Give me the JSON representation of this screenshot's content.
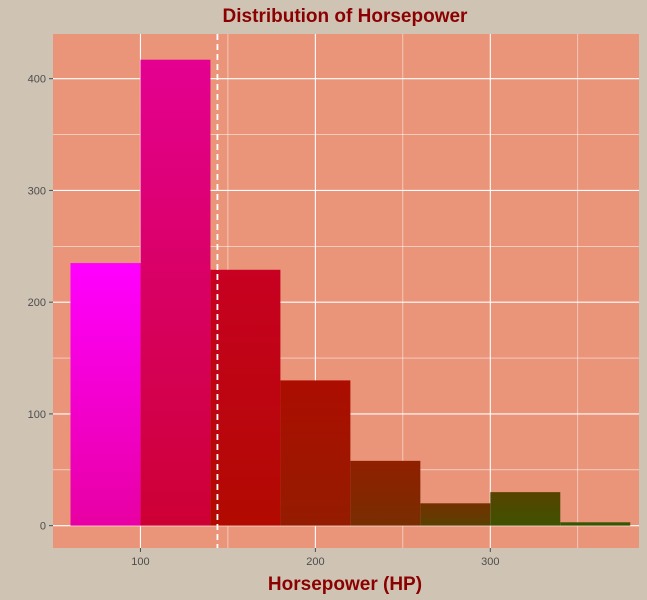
{
  "chart_data": {
    "type": "bar",
    "title": "Distribution of Horsepower",
    "xlabel": "Horsepower (HP)",
    "ylabel": "",
    "xlim": [
      50,
      385
    ],
    "ylim": [
      -20,
      440
    ],
    "x_ticks": [
      100,
      200,
      300
    ],
    "y_ticks": [
      0,
      100,
      200,
      300,
      400
    ],
    "bins": [
      {
        "x0": 60,
        "x1": 100,
        "count": 235
      },
      {
        "x0": 100,
        "x1": 140,
        "count": 417
      },
      {
        "x0": 140,
        "x1": 180,
        "count": 229
      },
      {
        "x0": 180,
        "x1": 220,
        "count": 130
      },
      {
        "x0": 220,
        "x1": 260,
        "count": 58
      },
      {
        "x0": 260,
        "x1": 300,
        "count": 20
      },
      {
        "x0": 300,
        "x1": 340,
        "count": 30
      },
      {
        "x0": 340,
        "x1": 380,
        "count": 3
      }
    ],
    "mean_line": 144,
    "grid": true,
    "legend": "none"
  },
  "colors": {
    "background": "#cfc4b4",
    "panel": "#ea957a",
    "grid": "#ffffff",
    "title": "#8b0000",
    "gradient_start": "#ff00ff",
    "gradient_mid": "#c00000",
    "gradient_end": "#3a5500"
  }
}
